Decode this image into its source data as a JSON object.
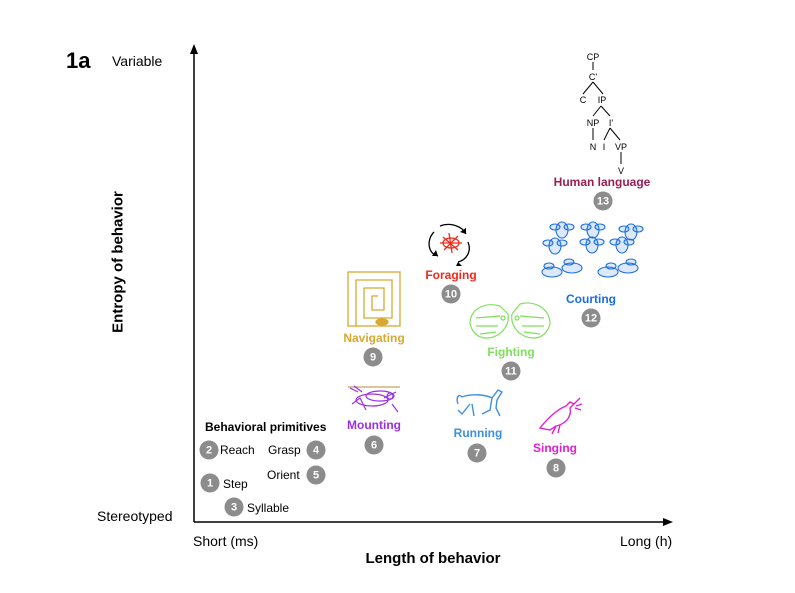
{
  "panel_label": "1a",
  "axes": {
    "y_top": "Variable",
    "y_bottom": "Stereotyped",
    "y_title": "Entropy of behavior",
    "x_left": "Short (ms)",
    "x_right": "Long (h)",
    "x_title": "Length of behavior"
  },
  "primitives": {
    "title": "Behavioral primitives",
    "items": [
      {
        "num": "1",
        "label": "Step"
      },
      {
        "num": "2",
        "label": "Reach"
      },
      {
        "num": "3",
        "label": "Syllable"
      },
      {
        "num": "4",
        "label": "Grasp"
      },
      {
        "num": "5",
        "label": "Orient"
      }
    ]
  },
  "behaviors": [
    {
      "num": "6",
      "label": "Mounting",
      "color": "#9b30e0",
      "icon": "mounting-flies-icon"
    },
    {
      "num": "7",
      "label": "Running",
      "color": "#3d8fe0",
      "icon": "horse-icon"
    },
    {
      "num": "8",
      "label": "Singing",
      "color": "#e020d0",
      "icon": "bird-icon"
    },
    {
      "num": "9",
      "label": "Navigating",
      "color": "#d8a830",
      "icon": "maze-icon"
    },
    {
      "num": "10",
      "label": "Foraging",
      "color": "#ee2a1a",
      "icon": "forager-icon"
    },
    {
      "num": "11",
      "label": "Fighting",
      "color": "#7ee05e",
      "icon": "fighting-animals-icon"
    },
    {
      "num": "12",
      "label": "Courting",
      "color": "#1a6ee0",
      "icon": "courting-flies-icon"
    },
    {
      "num": "13",
      "label": "Human language",
      "color": "#9a1e55",
      "icon": "syntax-tree-icon"
    }
  ],
  "syntax_tree": [
    "CP",
    "C'",
    "C",
    "IP",
    "NP",
    "I'",
    "N",
    "I",
    "VP",
    "V"
  ],
  "badge_color": "#8c8c8c"
}
